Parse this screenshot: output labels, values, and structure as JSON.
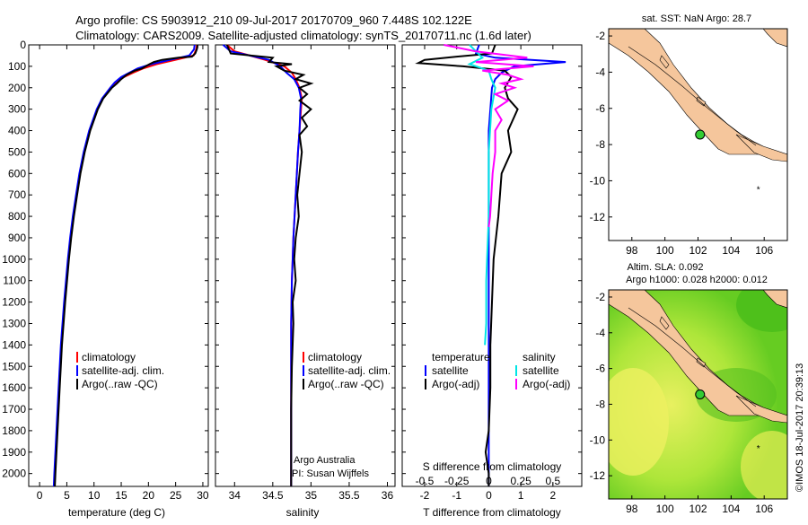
{
  "header": {
    "line1": "Argo profile: CS 5903912_210 09-Jul-2017 20170709_960 7.448S 102.122E",
    "line2": "Climatology: CARS2009. Satellite-adjusted climatology: synTS_20170711.nc (1.6d later)"
  },
  "colors": {
    "climatology": "#ff0000",
    "satellite": "#0000ff",
    "argo": "#000000",
    "sat_salinity": "#00e5e5",
    "argo_salinity": "#ff00ff",
    "land": "#f5c69c",
    "float_marker": "#33cc33"
  },
  "chart_data": [
    {
      "id": "temperature",
      "type": "line",
      "xlabel": "temperature (deg C)",
      "ylabel": "",
      "xlim": [
        -2,
        31
      ],
      "ylim": [
        2060,
        0
      ],
      "xticks": [
        0,
        5,
        10,
        15,
        20,
        25,
        30
      ],
      "yticks": [
        0,
        100,
        200,
        300,
        400,
        500,
        600,
        700,
        800,
        900,
        1000,
        1100,
        1200,
        1300,
        1400,
        1500,
        1600,
        1700,
        1800,
        1900,
        2000
      ],
      "grid": false,
      "legend": {
        "placement": "bottom-center",
        "entries": [
          "climatology",
          "satellite-adj. clim.",
          "Argo(..raw -QC)"
        ]
      },
      "series": [
        {
          "name": "climatology",
          "color": "#ff0000",
          "depth": [
            0,
            20,
            50,
            70,
            90,
            110,
            130,
            150,
            175,
            200,
            250,
            300,
            400,
            500,
            600,
            700,
            800,
            900,
            1000,
            1200,
            1400,
            1600,
            1800,
            2000,
            2060
          ],
          "values": [
            28.9,
            28.8,
            28.3,
            25.0,
            21.5,
            19.0,
            17.2,
            15.5,
            14.0,
            13.0,
            11.6,
            10.6,
            9.2,
            8.2,
            7.4,
            6.8,
            6.2,
            5.7,
            5.3,
            4.6,
            4.0,
            3.6,
            3.2,
            2.8,
            2.7
          ]
        },
        {
          "name": "satellite-adj. clim.",
          "color": "#0000ff",
          "depth": [
            0,
            20,
            50,
            70,
            90,
            110,
            130,
            150,
            175,
            200,
            250,
            300,
            400,
            500,
            600,
            700,
            800,
            900,
            1000,
            1200,
            1400,
            1600,
            1800,
            2000,
            2060
          ],
          "values": [
            28.5,
            28.4,
            27.5,
            24.0,
            20.5,
            18.0,
            16.5,
            15.0,
            13.8,
            13.0,
            11.5,
            10.5,
            9.1,
            8.1,
            7.3,
            6.7,
            6.1,
            5.6,
            5.2,
            4.5,
            3.9,
            3.5,
            3.1,
            2.7,
            2.6
          ]
        },
        {
          "name": "Argo(..raw -QC)",
          "color": "#000000",
          "depth": [
            0,
            10,
            20,
            40,
            55,
            60,
            70,
            80,
            90,
            100,
            110,
            120,
            140,
            160,
            180,
            200,
            250,
            300,
            400,
            500,
            600,
            700,
            800,
            900,
            1000,
            1200,
            1400,
            1600,
            1800,
            2000,
            2060
          ],
          "values": [
            29.0,
            29.0,
            28.9,
            28.6,
            28.0,
            25.5,
            22.5,
            21.0,
            20.2,
            19.5,
            18.8,
            17.5,
            16.0,
            15.0,
            14.2,
            13.3,
            11.7,
            10.7,
            9.3,
            8.3,
            7.5,
            6.9,
            6.3,
            5.8,
            5.4,
            4.7,
            4.1,
            3.7,
            3.3,
            2.9,
            2.8
          ]
        }
      ]
    },
    {
      "id": "salinity",
      "type": "line",
      "xlabel": "salinity",
      "ylabel": "",
      "xlim": [
        33.75,
        36.1
      ],
      "ylim": [
        2060,
        0
      ],
      "xticks": [
        34,
        34.5,
        35,
        35.5,
        36
      ],
      "grid": false,
      "legend": {
        "placement": "bottom-right",
        "entries": [
          "climatology",
          "satellite-adj. clim.",
          "Argo(..raw -QC)"
        ]
      },
      "annotation": [
        "Argo Australia",
        "PI: Susan Wijffels"
      ],
      "series": [
        {
          "name": "climatology",
          "color": "#ff0000",
          "depth": [
            0,
            30,
            50,
            70,
            100,
            130,
            160,
            200,
            250,
            300,
            400,
            500,
            700,
            900,
            1000,
            1100,
            1300,
            1500,
            1800,
            2060
          ],
          "values": [
            33.9,
            34.0,
            34.2,
            34.4,
            34.65,
            34.75,
            34.8,
            34.85,
            34.88,
            34.87,
            34.85,
            34.83,
            34.8,
            34.77,
            34.76,
            34.75,
            34.74,
            34.74,
            34.74,
            34.74
          ]
        },
        {
          "name": "satellite-adj. clim.",
          "color": "#0000ff",
          "depth": [
            0,
            30,
            50,
            70,
            100,
            130,
            160,
            200,
            250,
            300,
            400,
            500,
            700,
            900,
            1000,
            1100,
            1300,
            1500,
            1800,
            2060
          ],
          "values": [
            33.85,
            33.95,
            34.2,
            34.45,
            34.6,
            34.68,
            34.78,
            34.84,
            34.87,
            34.86,
            34.85,
            34.83,
            34.8,
            34.77,
            34.76,
            34.75,
            34.74,
            34.74,
            34.74,
            34.74
          ]
        },
        {
          "name": "Argo(..raw -QC)",
          "color": "#000000",
          "depth": [
            0,
            40,
            60,
            80,
            90,
            100,
            120,
            140,
            160,
            180,
            200,
            230,
            260,
            300,
            340,
            380,
            420,
            500,
            600,
            700,
            800,
            900,
            1000,
            1100,
            1200,
            1300,
            1500,
            1700,
            1900,
            2000,
            2060
          ],
          "values": [
            33.9,
            33.95,
            34.5,
            34.45,
            34.75,
            34.55,
            34.65,
            34.9,
            34.8,
            35.0,
            34.85,
            34.95,
            34.85,
            35.0,
            34.88,
            34.95,
            34.85,
            34.88,
            34.85,
            34.82,
            34.84,
            34.8,
            34.78,
            34.8,
            34.76,
            34.77,
            34.75,
            34.74,
            34.74,
            34.74,
            34.74
          ]
        }
      ]
    },
    {
      "id": "difference",
      "type": "line",
      "xlabel": "T difference from climatology",
      "xlabel_top": "S difference from climatology",
      "ylabel": "",
      "xlim": [
        -2.7,
        2.9
      ],
      "ylim": [
        2060,
        0
      ],
      "xticks": [
        -2,
        -1,
        0,
        1,
        2
      ],
      "xticks_secondary": [
        -0.5,
        -0.25,
        0,
        0.25,
        0.5
      ],
      "grid": false,
      "legend": {
        "placement": "bottom-center",
        "entries": [
          "temperature",
          "satellite",
          "Argo(-adj)",
          "salinity",
          "satellite",
          "Argo(-adj)"
        ]
      },
      "series": [
        {
          "name": "temperature satellite",
          "color": "#0000ff",
          "depth": [
            0,
            40,
            60,
            80,
            100,
            130,
            160,
            200,
            300,
            400,
            600,
            800,
            1000,
            1400,
            1800,
            2060
          ],
          "values": [
            -0.3,
            -0.4,
            0.2,
            2.4,
            0.8,
            0.4,
            0.2,
            0.1,
            0.05,
            0.0,
            0.0,
            0.0,
            0.0,
            0.0,
            0.0,
            0.0
          ]
        },
        {
          "name": "temperature Argo(-adj)",
          "color": "#000000",
          "depth": [
            0,
            40,
            55,
            70,
            85,
            100,
            120,
            150,
            200,
            250,
            300,
            400,
            500,
            600,
            800,
            1000,
            1200,
            1400,
            1600,
            1800,
            1900,
            2000,
            2060
          ],
          "values": [
            0.2,
            0.1,
            -1.0,
            -2.0,
            -2.2,
            -0.8,
            0.5,
            0.7,
            0.5,
            0.6,
            0.9,
            0.6,
            0.7,
            0.4,
            0.3,
            0.15,
            0.1,
            0.05,
            0.05,
            0.0,
            -0.1,
            0.0,
            0.0
          ]
        },
        {
          "name": "salinity satellite",
          "color": "#00e5e5",
          "depth": [
            0,
            30,
            60,
            90,
            120,
            160,
            200,
            300,
            500,
            800,
            1100,
            1300,
            1400
          ],
          "values": [
            -0.15,
            -0.1,
            -0.05,
            -0.15,
            0.0,
            0.02,
            0.05,
            0.02,
            0.0,
            0.0,
            -0.02,
            -0.02,
            -0.03
          ]
        },
        {
          "name": "salinity Argo(-adj)",
          "color": "#ff00ff",
          "depth": [
            0,
            30,
            60,
            80,
            100,
            120,
            140,
            160,
            180,
            200,
            230,
            260,
            300,
            350,
            400,
            500,
            600,
            700,
            800,
            850
          ],
          "values": [
            -0.35,
            -0.1,
            0.3,
            -0.1,
            0.35,
            -0.05,
            0.15,
            0.25,
            0.1,
            0.2,
            0.05,
            0.15,
            0.05,
            0.1,
            0.05,
            0.05,
            0.03,
            0.02,
            0.01,
            0.0
          ]
        }
      ]
    },
    {
      "id": "sst_map",
      "type": "scatter",
      "title": "sat. SST: NaN Argo: 28.7",
      "xlim": [
        96.6,
        107.4
      ],
      "ylim": [
        -13.3,
        -1.6
      ],
      "xticks": [
        98,
        100,
        102,
        104,
        106
      ],
      "yticks": [
        -2,
        -4,
        -6,
        -8,
        -10,
        -12
      ],
      "points": [
        {
          "lon": 102.122,
          "lat": -7.448
        }
      ]
    },
    {
      "id": "sla_map",
      "type": "heatmap",
      "title_line1": "Altim. SLA: 0.092",
      "title_line2": "Argo h1000: 0.028 h2000: 0.012",
      "xlim": [
        96.6,
        107.4
      ],
      "ylim": [
        -13.3,
        -1.6
      ],
      "xticks": [
        98,
        100,
        102,
        104,
        106
      ],
      "yticks": [
        -2,
        -4,
        -6,
        -8,
        -10,
        -12
      ],
      "points": [
        {
          "lon": 102.122,
          "lat": -7.448
        }
      ]
    }
  ],
  "footer": {
    "stamp": "©IMOS 18-Jul-2017 20:39:13"
  }
}
